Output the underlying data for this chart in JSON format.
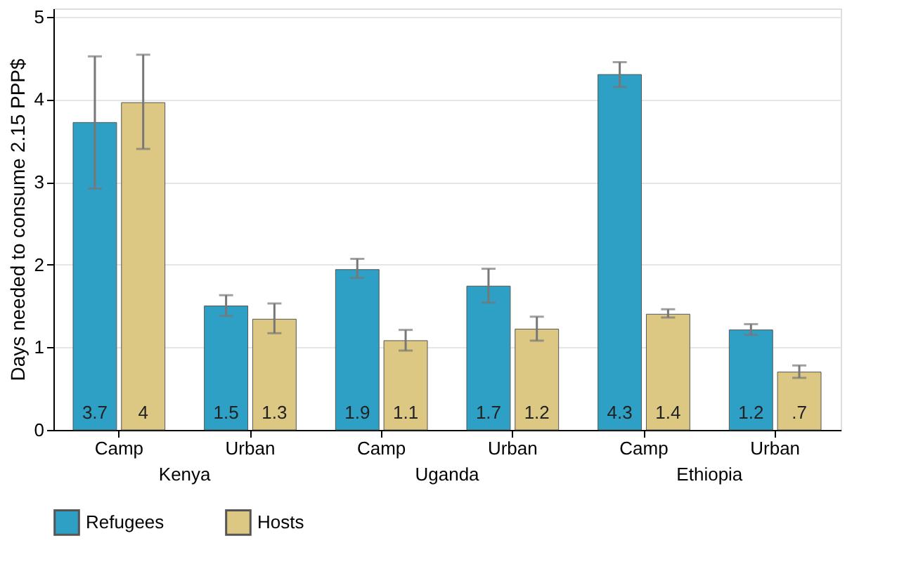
{
  "chart_data": {
    "type": "bar",
    "ylabel": "Days needed to consume 2.15 PPP$",
    "categories": [
      "Camp",
      "Urban",
      "Camp",
      "Urban",
      "Camp",
      "Urban"
    ],
    "annotations": [
      "Kenya",
      "Uganda",
      "Ethiopia"
    ],
    "series": [
      {
        "name": "Refugees",
        "color": "#2e9fc5",
        "values": [
          3.72,
          1.5,
          1.94,
          1.74,
          4.3,
          1.21
        ],
        "value_labels": [
          "3.7",
          "1.5",
          "1.9",
          "1.7",
          "4.3",
          "1.2"
        ],
        "errors": [
          [
            2.92,
            4.52
          ],
          [
            1.38,
            1.63
          ],
          [
            1.84,
            2.07
          ],
          [
            1.54,
            1.95
          ],
          [
            4.15,
            4.45
          ],
          [
            1.15,
            1.28
          ]
        ]
      },
      {
        "name": "Hosts",
        "color": "#dcc882",
        "values": [
          3.96,
          1.34,
          1.08,
          1.22,
          1.4,
          0.7
        ],
        "value_labels": [
          "4",
          "1.3",
          "1.1",
          "1.2",
          "1.4",
          ".7"
        ],
        "errors": [
          [
            3.4,
            4.54
          ],
          [
            1.17,
            1.53
          ],
          [
            0.96,
            1.21
          ],
          [
            1.08,
            1.37
          ],
          [
            1.36,
            1.46
          ],
          [
            0.63,
            0.78
          ]
        ]
      }
    ],
    "ylim": [
      0,
      5.1
    ],
    "yticks": [
      0,
      1,
      2,
      3,
      4,
      5
    ],
    "grid": "y",
    "legend": "bottom"
  }
}
